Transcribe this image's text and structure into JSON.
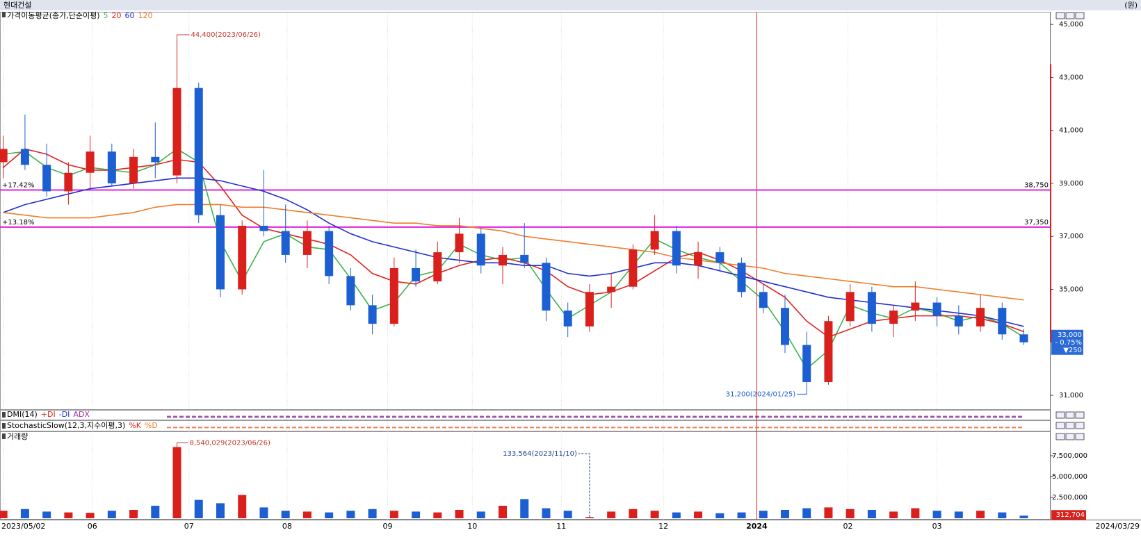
{
  "chart_data": {
    "type": "candlestick",
    "title": "현대건설",
    "unit": "(원)",
    "legend": {
      "label": "가격이동평균(종가,단순이평)"
    },
    "xlim": [
      -0.15,
      48.2
    ],
    "xticks": [
      {
        "value": 0,
        "label": "2023/05/02"
      },
      {
        "value": 4.1,
        "label": "06"
      },
      {
        "value": 8.55,
        "label": "07"
      },
      {
        "value": 13.07,
        "label": "08"
      },
      {
        "value": 17.7,
        "label": "09"
      },
      {
        "value": 21.6,
        "label": "10"
      },
      {
        "value": 25.7,
        "label": "11"
      },
      {
        "value": 30.4,
        "label": "12"
      },
      {
        "value": 34.7,
        "label": "2024"
      },
      {
        "value": 38.9,
        "label": "02"
      },
      {
        "value": 43,
        "label": "03"
      }
    ],
    "end_date": "2024/03/29",
    "ylim": [
      30450,
      45450
    ],
    "yticks": [
      {
        "value": 31000,
        "label": "31,000"
      },
      {
        "value": 35000,
        "label": "35,000"
      },
      {
        "value": 37000,
        "label": "37,000"
      },
      {
        "value": 39000,
        "label": "39,000"
      },
      {
        "value": 41000,
        "label": "41,000"
      },
      {
        "value": 43000,
        "label": "43,000"
      },
      {
        "value": 45000,
        "label": "45,000"
      }
    ],
    "up_color": "#d9201c",
    "down_color": "#1c5fd3",
    "candles": {
      "open": [
        39800,
        40300,
        39700,
        38700,
        39400,
        40200,
        39000,
        40000,
        39300,
        42600,
        37800,
        35000,
        37400,
        37200,
        36300,
        37200,
        35500,
        34400,
        33700,
        35800,
        35300,
        36400,
        37100,
        35900,
        36300,
        36000,
        34200,
        33600,
        34900,
        35100,
        36500,
        37200,
        35900,
        36400,
        36000,
        34900,
        34300,
        32900,
        31500,
        33800,
        34900,
        33700,
        34200,
        34500,
        34000,
        33600,
        34300,
        33300
      ],
      "high": [
        40800,
        41600,
        40500,
        39800,
        40800,
        40500,
        40300,
        41300,
        44400,
        42800,
        38200,
        37600,
        39500,
        38200,
        37600,
        37400,
        35800,
        34800,
        36200,
        36500,
        36800,
        37700,
        37300,
        36600,
        37500,
        36200,
        34500,
        35200,
        35600,
        36700,
        37800,
        37400,
        36800,
        36600,
        36200,
        35200,
        34800,
        33400,
        34000,
        35200,
        35100,
        34400,
        35300,
        34700,
        34400,
        34800,
        34500,
        33500
      ],
      "low": [
        39200,
        39500,
        38500,
        38200,
        38800,
        38900,
        38800,
        39200,
        39000,
        37500,
        34700,
        34800,
        37000,
        36000,
        35800,
        35200,
        34200,
        33300,
        33600,
        35100,
        35200,
        36000,
        35600,
        35200,
        35800,
        33800,
        33200,
        33400,
        34300,
        35000,
        36300,
        35600,
        35400,
        35700,
        34700,
        34100,
        32600,
        31200,
        31400,
        33600,
        33400,
        33200,
        33800,
        33600,
        33300,
        33400,
        33100,
        32900
      ],
      "close": [
        40300,
        39700,
        38700,
        39400,
        40200,
        39000,
        40000,
        39800,
        42600,
        37800,
        35000,
        37400,
        37200,
        36300,
        37200,
        35500,
        34400,
        33700,
        35800,
        35300,
        36400,
        37100,
        35900,
        36300,
        36000,
        34200,
        33600,
        34900,
        35100,
        36500,
        37200,
        35900,
        36400,
        36000,
        34900,
        34300,
        32900,
        31500,
        33800,
        34900,
        33700,
        34200,
        34500,
        34000,
        33600,
        34300,
        33300,
        33000
      ]
    },
    "series": [
      {
        "name": "5",
        "color": "#3cb44a",
        "values": [
          40100,
          40200,
          39600,
          39300,
          39600,
          39500,
          39400,
          39700,
          40300,
          39800,
          36800,
          35300,
          36800,
          37100,
          36600,
          36500,
          35400,
          34200,
          34500,
          35500,
          35700,
          36700,
          36300,
          36100,
          36200,
          35000,
          33900,
          34400,
          34900,
          35900,
          36900,
          36500,
          36200,
          36000,
          35300,
          34600,
          33400,
          32000,
          32700,
          34400,
          34100,
          33900,
          34300,
          34100,
          33800,
          34000,
          33700,
          33200
        ]
      },
      {
        "name": "20",
        "color": "#e0231f",
        "values": [
          39600,
          40300,
          40100,
          39700,
          39500,
          39500,
          39600,
          39700,
          39900,
          39800,
          38900,
          37800,
          37300,
          37100,
          36900,
          36700,
          36300,
          35600,
          35300,
          35200,
          35600,
          35900,
          36100,
          36200,
          36000,
          35700,
          35100,
          34800,
          34900,
          35200,
          35700,
          36200,
          36400,
          36100,
          35700,
          35200,
          34700,
          33800,
          33200,
          33500,
          33800,
          33900,
          34000,
          34000,
          34000,
          33900,
          33700,
          33400
        ]
      },
      {
        "name": "60",
        "color": "#1f2ecf",
        "values": [
          37900,
          38200,
          38400,
          38600,
          38800,
          38900,
          39000,
          39100,
          39200,
          39200,
          39100,
          38900,
          38700,
          38400,
          38000,
          37500,
          37100,
          36800,
          36600,
          36400,
          36200,
          36100,
          36000,
          36000,
          35900,
          35900,
          35600,
          35500,
          35600,
          35800,
          36000,
          36000,
          35900,
          35700,
          35500,
          35300,
          35100,
          34900,
          34700,
          34600,
          34500,
          34400,
          34300,
          34200,
          34100,
          34000,
          33800,
          33600
        ]
      },
      {
        "name": "120",
        "color": "#f07c2a",
        "values": [
          37900,
          37800,
          37700,
          37700,
          37700,
          37800,
          37900,
          38100,
          38200,
          38200,
          38200,
          38100,
          38100,
          38000,
          37900,
          37800,
          37700,
          37600,
          37500,
          37500,
          37400,
          37400,
          37300,
          37200,
          37000,
          36900,
          36800,
          36700,
          36600,
          36500,
          36400,
          36200,
          36100,
          36000,
          35900,
          35800,
          35600,
          35500,
          35400,
          35300,
          35200,
          35100,
          35100,
          35000,
          34900,
          34800,
          34700,
          34600
        ]
      }
    ],
    "hlines": [
      {
        "value": 38750,
        "label": "38,750",
        "pct_label": "+17.42%"
      },
      {
        "value": 37350,
        "label": "37,350",
        "pct_label": "+13.18%"
      }
    ],
    "hline_color": "#e020e0",
    "annotations": {
      "high": {
        "value": 44400,
        "label": "44,400(2023/06/26)"
      },
      "low": {
        "value": 31200,
        "label": "31,200(2024/01/25)"
      }
    },
    "last": {
      "price": {
        "value": 33000,
        "label": "33,000"
      },
      "change_pct": {
        "value": -0.75,
        "label": "- 0.75%"
      },
      "change": {
        "value": -250,
        "label": "▼250"
      }
    },
    "indicators": [
      {
        "label": "DMI(14)",
        "lines": [
          {
            "name": "+DI",
            "color": "#e0231f"
          },
          {
            "name": "-DI",
            "color": "#1f2ecf"
          },
          {
            "name": "ADX",
            "color": "#9a2fa0"
          }
        ]
      },
      {
        "label": "StochasticSlow(12,3,지수이평,3)",
        "lines": [
          {
            "name": "%K",
            "color": "#e0231f"
          },
          {
            "name": "%D",
            "color": "#f07c2a"
          }
        ]
      }
    ],
    "volume": {
      "label": "거래량",
      "values": [
        900000,
        1100000,
        800000,
        700000,
        650000,
        900000,
        1000000,
        1500000,
        8540029,
        2200000,
        1800000,
        2800000,
        1300000,
        900000,
        800000,
        700000,
        900000,
        1100000,
        900000,
        800000,
        700000,
        1000000,
        800000,
        1500000,
        2300000,
        1200000,
        900000,
        133564,
        800000,
        1100000,
        900000,
        700000,
        800000,
        600000,
        700000,
        900000,
        1000000,
        1200000,
        1300000,
        1100000,
        1000000,
        800000,
        1200000,
        900000,
        800000,
        900000,
        700000,
        312704
      ],
      "ylim": [
        0,
        9500000
      ],
      "yticks": [
        {
          "value": 2500000,
          "label": "2,500,000"
        },
        {
          "value": 5000000,
          "label": "5,000,000"
        },
        {
          "value": 7500000,
          "label": "7,500,000"
        }
      ],
      "annotations": {
        "max": {
          "value": 8540029,
          "label": "8,540,029(2023/06/26)"
        },
        "min": {
          "value": 133564,
          "label": "133,564(2023/11/10)"
        }
      },
      "last": {
        "value": 312704,
        "label": "312,704"
      }
    }
  }
}
